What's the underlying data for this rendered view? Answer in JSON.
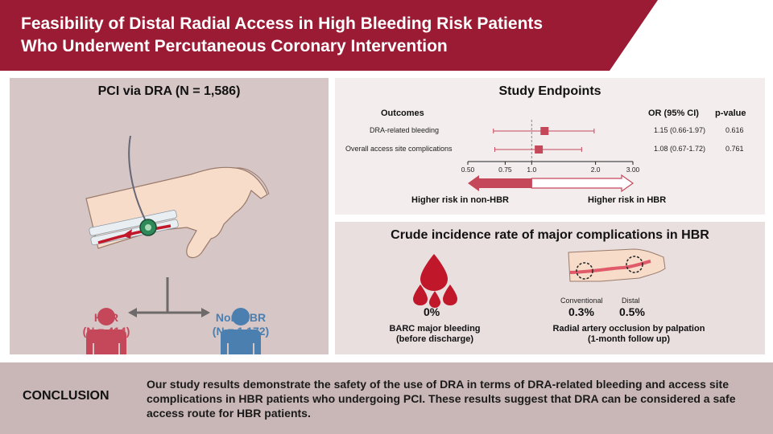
{
  "title": {
    "line1": "Feasibility of Distal Radial Access in High Bleeding Risk Patients",
    "line2": "Who Underwent Percutaneous Coronary Intervention"
  },
  "left_panel": {
    "title": "PCI via DRA (N = 1,586)",
    "hbr": {
      "label": "HBR",
      "n": "(N = 414)",
      "color": "#c5485a"
    },
    "non_hbr": {
      "label": "Non-HBR",
      "n": "(N = 1,172)",
      "color": "#4a7fb0"
    }
  },
  "endpoints": {
    "title": "Study Endpoints",
    "headers": {
      "outcomes": "Outcomes",
      "or": "OR (95% CI)",
      "p": "p-value"
    },
    "rows": [
      {
        "label": "DRA-related bleeding",
        "or_text": "1.15 (0.66-1.97)",
        "p": "0.616"
      },
      {
        "label": "Overall access site complications",
        "or_text": "1.08 (0.67-1.72)",
        "p": "0.761"
      }
    ],
    "axis_ticks": [
      "0.50",
      "0.75",
      "1.0",
      "2.0",
      "3.00"
    ],
    "arrow_left": "Higher risk in non-HBR",
    "arrow_right": "Higher risk in HBR"
  },
  "chart_data": {
    "type": "forest",
    "log_scale": true,
    "reference_line": 1.0,
    "xlim": [
      0.5,
      3.0
    ],
    "x_ticks": [
      0.5,
      0.75,
      1.0,
      2.0,
      3.0
    ],
    "rows": [
      {
        "name": "DRA-related bleeding",
        "or": 1.15,
        "lo": 0.66,
        "hi": 1.97,
        "p": 0.616
      },
      {
        "name": "Overall access site complications",
        "or": 1.08,
        "lo": 0.67,
        "hi": 1.72,
        "p": 0.761
      }
    ],
    "color": "#c5485a"
  },
  "incidence": {
    "title": "Crude incidence rate of major complications in HBR",
    "bleeding_value": "0%",
    "bleeding_label1": "BARC major bleeding",
    "bleeding_label2": "(before discharge)",
    "conventional_label": "Conventional",
    "distal_label": "Distal",
    "conventional_value": "0.3%",
    "distal_value": "0.5%",
    "occlusion_label1": "Radial artery occlusion by palpation",
    "occlusion_label2": "(1-month follow up)"
  },
  "conclusion": {
    "label": "CONCLUSION",
    "text": "Our study results demonstrate the safety of the use of DRA in terms of DRA-related bleeding and access site complications in HBR patients who undergoing PCI. These results suggest that DRA can be considered a safe access route for HBR patients."
  }
}
